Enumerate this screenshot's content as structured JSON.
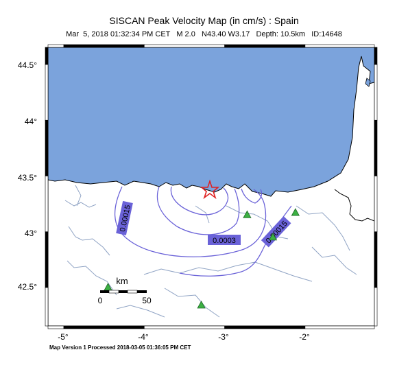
{
  "title": "SISCAN Peak Velocity Map (in cm/s) : Spain",
  "subtitle": "Mar  5, 2018 01:32:34 PM CET   M 2.0   N43.40 W3.17   Depth: 10.5km   ID:14648",
  "footer": "Map Version 1 Processed 2018-03-05 01:36:05 PM CET",
  "axes": {
    "y_ticks": [
      "44.5°",
      "44°",
      "43.5°",
      "43°",
      "42.5°"
    ],
    "x_ticks": [
      "-5°",
      "-4°",
      "-3°",
      "-2°"
    ]
  },
  "contours": [
    {
      "label": "0.00015",
      "value": 0.00015
    },
    {
      "label": "0.0003",
      "value": 0.0003
    },
    {
      "label": "0.00015",
      "value": 0.00015
    }
  ],
  "scale_bar": {
    "unit": "km",
    "min_label": "0",
    "max_label": "50"
  },
  "epicenter": {
    "lat": 43.4,
    "lon": -3.17,
    "symbol": "star-icon"
  },
  "stations": [
    {
      "lat": 43.15,
      "lon": -2.72
    },
    {
      "lat": 43.17,
      "lon": -2.12
    },
    {
      "lat": 42.95,
      "lon": -2.4
    },
    {
      "lat": 42.34,
      "lon": -3.29
    },
    {
      "lat": 42.5,
      "lon": -4.45
    }
  ],
  "colors": {
    "sea": "#7ba3dc",
    "contour": "#6a62d8",
    "rivers": "#8fa3c4",
    "star": "#e02020",
    "station": "#3cb043"
  }
}
